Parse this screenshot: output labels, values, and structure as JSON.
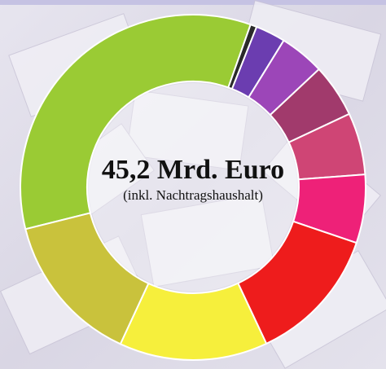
{
  "chart_data": {
    "type": "donut",
    "title": "45,2 Mrd. Euro",
    "subtitle": "(inkl. Nachtragshaushalt)",
    "values": [
      34.3,
      0.6,
      2.8,
      4.2,
      5.0,
      5.8,
      6.4,
      12.8,
      13.9,
      14.2
    ],
    "colors": [
      "#9acb34",
      "#2a2a2a",
      "#6b3db0",
      "#9c46b8",
      "#a13a6c",
      "#cf4575",
      "#ee2178",
      "#ee1c1c",
      "#f6ef3c",
      "#c9c23c"
    ]
  }
}
